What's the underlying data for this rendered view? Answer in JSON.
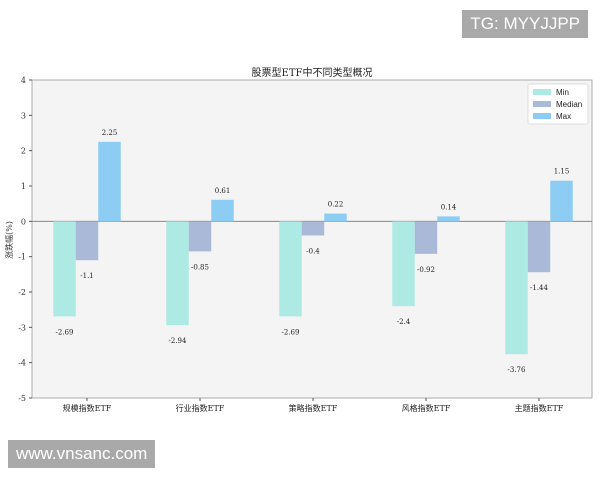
{
  "watermarks": {
    "top": "TG: MYYJJPP",
    "bottom": "www.vnsanc.com"
  },
  "chart_data": {
    "type": "bar",
    "title": "股票型ETF中不同类型概况",
    "xlabel": "",
    "ylabel": "涨跌幅(%)",
    "ylim": [
      -5,
      4
    ],
    "yticks": [
      4,
      3,
      2,
      1,
      0,
      -1,
      -2,
      -3,
      -4,
      -5
    ],
    "grid": false,
    "legend": "top-right",
    "categories": [
      "规模指数ETF",
      "行业指数ETF",
      "策略指数ETF",
      "风格指数ETF",
      "主题指数ETF"
    ],
    "series": [
      {
        "name": "Min",
        "color": "#aeeae4",
        "values": [
          -2.69,
          -2.94,
          -2.69,
          -2.4,
          -3.76
        ]
      },
      {
        "name": "Median",
        "color": "#aab9d8",
        "values": [
          -1.1,
          -0.85,
          -0.4,
          -0.92,
          -1.44
        ]
      },
      {
        "name": "Max",
        "color": "#8dcdf3",
        "values": [
          2.25,
          0.61,
          0.22,
          0.14,
          1.15
        ]
      }
    ]
  }
}
